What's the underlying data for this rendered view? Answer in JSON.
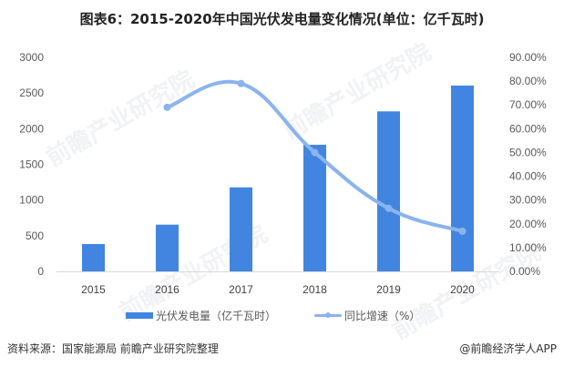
{
  "title": "图表6：2015-2020年中国光伏发电量变化情况(单位：亿千瓦时)",
  "chart_data": {
    "type": "bar",
    "title": "图表6：2015-2020年中国光伏发电量变化情况(单位：亿千瓦时)",
    "categories": [
      "2015",
      "2016",
      "2017",
      "2018",
      "2019",
      "2020"
    ],
    "series": [
      {
        "name": "光伏发电量（亿千瓦时）",
        "type": "bar",
        "axis": "left",
        "color": "#4285e0",
        "values": [
          383,
          655,
          1178,
          1775,
          2243,
          2605
        ]
      },
      {
        "name": "同比增速（%）",
        "type": "line",
        "axis": "right",
        "color": "#8ab4ee",
        "values": [
          null,
          69.0,
          79.0,
          50.0,
          26.5,
          16.9
        ]
      }
    ],
    "left_axis": {
      "ticks": [
        "0",
        "500",
        "1000",
        "1500",
        "2000",
        "2500",
        "3000"
      ],
      "ylim": [
        0,
        3000
      ]
    },
    "right_axis": {
      "ticks": [
        "0.00%",
        "10.00%",
        "20.00%",
        "30.00%",
        "40.00%",
        "50.00%",
        "60.00%",
        "70.00%",
        "80.00%",
        "90.00%"
      ],
      "ylim": [
        0,
        90
      ]
    },
    "xlabel": "",
    "ylabel": "",
    "grid": false,
    "legend_position": "bottom"
  },
  "legend": {
    "bar_label": "光伏发电量（亿千瓦时）",
    "line_label": "同比增速（%）"
  },
  "footer": {
    "source": "资料来源：国家能源局 前瞻产业研究院整理",
    "credit": "@前瞻经济学人APP"
  },
  "watermark": "前瞻产业研究院"
}
